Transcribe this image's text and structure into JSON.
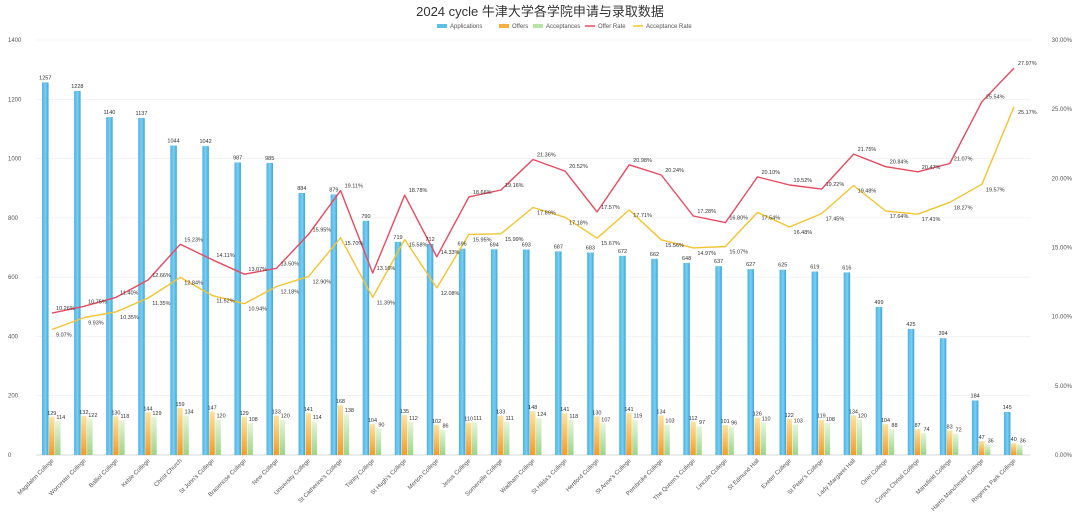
{
  "chart_data": {
    "type": "bar",
    "title": "2024 cycle 牛津大学各学院申请与录取数据",
    "categories": [
      "Magdalen College",
      "Worcester College",
      "Balliol College",
      "Keble College",
      "Christ Church",
      "St John's College",
      "Brasenose College",
      "New College",
      "University College",
      "St Catherine's College",
      "Trinity College",
      "St Hugh's College",
      "Merton College",
      "Jesus College",
      "Somerville College",
      "Wadham College",
      "St Hilda's College",
      "Hertford College",
      "St Anne's College",
      "Pembroke College",
      "The Queen's College",
      "Lincoln College",
      "St Edmund Hall",
      "Exeter College",
      "St Peter's College",
      "Lady Margaret Hall",
      "Oriel College",
      "Corpus Christi College",
      "Mansfield College",
      "Harris Manchester College",
      "Regent's Park College"
    ],
    "series": [
      {
        "name": "Applications",
        "type": "bar",
        "color": "#5bc0eb",
        "values": [
          1257,
          1228,
          1140,
          1137,
          1044,
          1042,
          987,
          985,
          884,
          879,
          790,
          719,
          712,
          696,
          694,
          693,
          687,
          683,
          672,
          662,
          648,
          637,
          627,
          625,
          619,
          616,
          499,
          425,
          394,
          184,
          145
        ]
      },
      {
        "name": "Offers",
        "type": "bar",
        "color": "#f5b041",
        "values": [
          129,
          132,
          130,
          144,
          159,
          147,
          129,
          133,
          141,
          168,
          104,
          135,
          102,
          110,
          133,
          148,
          141,
          130,
          141,
          134,
          112,
          101,
          126,
          122,
          119,
          134,
          104,
          87,
          83,
          47,
          40
        ]
      },
      {
        "name": "Acceptances",
        "type": "bar",
        "color": "#b9e4a8",
        "values": [
          114,
          122,
          118,
          129,
          134,
          120,
          108,
          120,
          114,
          138,
          90,
          112,
          86,
          111,
          111,
          124,
          118,
          107,
          119,
          103,
          97,
          96,
          110,
          103,
          108,
          120,
          88,
          74,
          72,
          36,
          36
        ]
      },
      {
        "name": "Offer Rate",
        "type": "line",
        "color": "#e84a5f",
        "axis": "right",
        "values": [
          10.26,
          10.75,
          11.4,
          12.66,
          15.23,
          14.11,
          13.07,
          13.5,
          15.95,
          19.11,
          13.16,
          18.78,
          14.33,
          18.66,
          19.16,
          21.36,
          20.52,
          17.57,
          20.98,
          20.24,
          17.28,
          16.8,
          20.1,
          19.52,
          19.22,
          21.75,
          20.84,
          20.47,
          21.07,
          25.54,
          27.97
        ],
        "labels": [
          "10.26%",
          "10.75%",
          "11.40%",
          "12.66%",
          "15.23%",
          "14.11%",
          "13.07%",
          "13.50%",
          "15.95%",
          "19.11%",
          "13.16%",
          "18.78%",
          "14.33%",
          "18.66%",
          "19.16%",
          "21.36%",
          "20.52%",
          "17.57%",
          "20.98%",
          "20.24%",
          "17.28%",
          "16.80%",
          "20.10%",
          "19.52%",
          "19.22%",
          "21.75%",
          "20.84%",
          "20.47%",
          "21.07%",
          "25.54%",
          "27.97%"
        ]
      },
      {
        "name": "Acceptance Rate",
        "type": "line",
        "color": "#f4c430",
        "axis": "right",
        "values": [
          9.07,
          9.93,
          10.35,
          11.35,
          12.84,
          11.52,
          10.94,
          12.18,
          12.9,
          15.7,
          11.39,
          15.58,
          12.08,
          15.95,
          15.99,
          17.89,
          17.18,
          15.67,
          17.71,
          15.56,
          14.97,
          15.07,
          17.54,
          16.48,
          17.45,
          19.48,
          17.64,
          17.41,
          18.27,
          19.57,
          25.17
        ],
        "labels": [
          "9.07%",
          "9.93%",
          "10.35%",
          "11.35%",
          "12.84%",
          "11.52%",
          "10.94%",
          "12.18%",
          "12.90%",
          "15.70%",
          "11.39%",
          "15.58%",
          "12.08%",
          "15.95%",
          "15.99%",
          "17.89%",
          "17.18%",
          "15.67%",
          "17.71%",
          "15.56%",
          "14.97%",
          "15.07%",
          "17.54%",
          "16.48%",
          "17.45%",
          "19.48%",
          "17.64%",
          "17.41%",
          "18.27%",
          "19.57%",
          "25.17%"
        ]
      }
    ],
    "y_left": {
      "min": 0,
      "max": 1400,
      "ticks": [
        "0",
        "200",
        "400",
        "600",
        "800",
        "1000",
        "1200",
        "1400"
      ]
    },
    "y_right": {
      "min": 0,
      "max": 30,
      "ticks": [
        "0.00%",
        "5.00%",
        "10.00%",
        "15.00%",
        "20.00%",
        "25.00%",
        "30.00%"
      ]
    },
    "legend": {
      "position": "top-right",
      "items": [
        "Applications",
        "Offers",
        "Acceptances",
        "Offer Rate",
        "Acceptance Rate"
      ]
    },
    "grid": true
  }
}
